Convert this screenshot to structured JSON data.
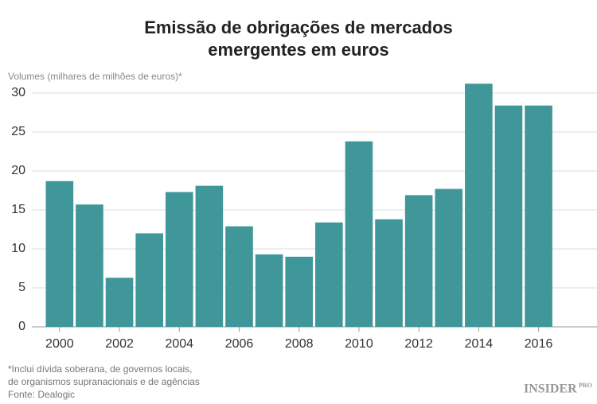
{
  "chart_data": {
    "type": "bar",
    "title": [
      "Emissão de obrigações de mercados",
      "emergentes em euros"
    ],
    "ylabel": "Volumes (milhares de milhões de euros)*",
    "x": [
      2000,
      2001,
      2002,
      2003,
      2004,
      2005,
      2006,
      2007,
      2008,
      2009,
      2010,
      2011,
      2012,
      2013,
      2014,
      2015,
      2016
    ],
    "values": [
      18.7,
      15.7,
      6.3,
      12.0,
      17.3,
      18.1,
      12.9,
      9.3,
      9.0,
      13.4,
      23.8,
      13.8,
      16.9,
      17.7,
      31.2,
      28.4,
      28.4
    ],
    "color": "#3f9799",
    "xlim": [
      1999.1,
      2017.5
    ],
    "xticks": [
      2000,
      2002,
      2004,
      2006,
      2008,
      2010,
      2012,
      2014,
      2016
    ],
    "ylim": [
      0,
      30
    ],
    "yticks": [
      0,
      5,
      10,
      15,
      20,
      25,
      30
    ],
    "grid": true,
    "footnotes": [
      "*Inclui dívida soberana, de governos locais,",
      "de organismos supranacionais e de agências",
      "Fonte: Dealogic"
    ],
    "logo": {
      "main": "INSIDER",
      "sub": "PRO"
    }
  }
}
